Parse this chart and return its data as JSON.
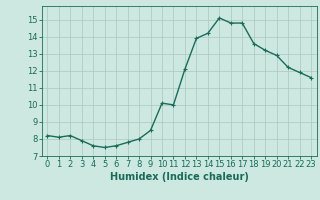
{
  "x": [
    0,
    1,
    2,
    3,
    4,
    5,
    6,
    7,
    8,
    9,
    10,
    11,
    12,
    13,
    14,
    15,
    16,
    17,
    18,
    19,
    20,
    21,
    22,
    23
  ],
  "y": [
    8.2,
    8.1,
    8.2,
    7.9,
    7.6,
    7.5,
    7.6,
    7.8,
    8.0,
    8.5,
    10.1,
    10.0,
    12.1,
    13.9,
    14.2,
    15.1,
    14.8,
    14.8,
    13.6,
    13.2,
    12.9,
    12.2,
    11.9,
    11.6
  ],
  "line_color": "#1a6b5a",
  "marker": "+",
  "marker_size": 3,
  "marker_color": "#1a6b5a",
  "background_color": "#cce8e0",
  "grid_color": "#aac8be",
  "xlabel": "Humidex (Indice chaleur)",
  "xlim": [
    -0.5,
    23.5
  ],
  "ylim": [
    7,
    15.8
  ],
  "yticks": [
    7,
    8,
    9,
    10,
    11,
    12,
    13,
    14,
    15
  ],
  "xticks": [
    0,
    1,
    2,
    3,
    4,
    5,
    6,
    7,
    8,
    9,
    10,
    11,
    12,
    13,
    14,
    15,
    16,
    17,
    18,
    19,
    20,
    21,
    22,
    23
  ],
  "tick_fontsize": 6,
  "xlabel_fontsize": 7,
  "line_width": 1.0
}
